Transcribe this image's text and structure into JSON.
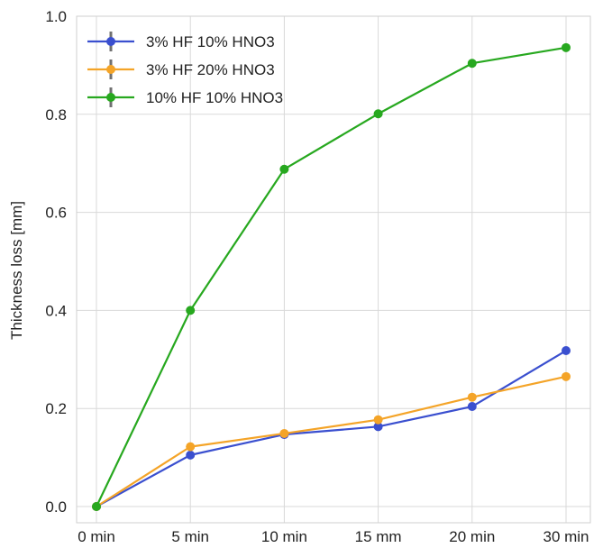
{
  "chart_data": {
    "type": "line",
    "categories": [
      "0 min",
      "5 min",
      "10 min",
      "15 mm",
      "20 min",
      "30 min"
    ],
    "ylabel": "Thickness loss [mm]",
    "xlabel": "",
    "ylim": [
      0.0,
      1.0
    ],
    "yticks": [
      "0.0",
      "0.2",
      "0.4",
      "0.6",
      "0.8",
      "1.0"
    ],
    "ytick_values": [
      0.0,
      0.2,
      0.4,
      0.6,
      0.8,
      1.0
    ],
    "grid": true,
    "legend_position": "top-left",
    "series": [
      {
        "name": "3% HF 10% HNO3",
        "color": "#3a4fcf",
        "values": [
          0.0,
          0.105,
          0.147,
          0.163,
          0.204,
          0.318
        ]
      },
      {
        "name": "3% HF 20% HNO3",
        "color": "#f4a428",
        "values": [
          0.0,
          0.122,
          0.149,
          0.177,
          0.223,
          0.265
        ]
      },
      {
        "name": "10% HF 10% HNO3",
        "color": "#27a81f",
        "values": [
          0.0,
          0.4,
          0.688,
          0.801,
          0.904,
          0.936
        ]
      }
    ]
  }
}
